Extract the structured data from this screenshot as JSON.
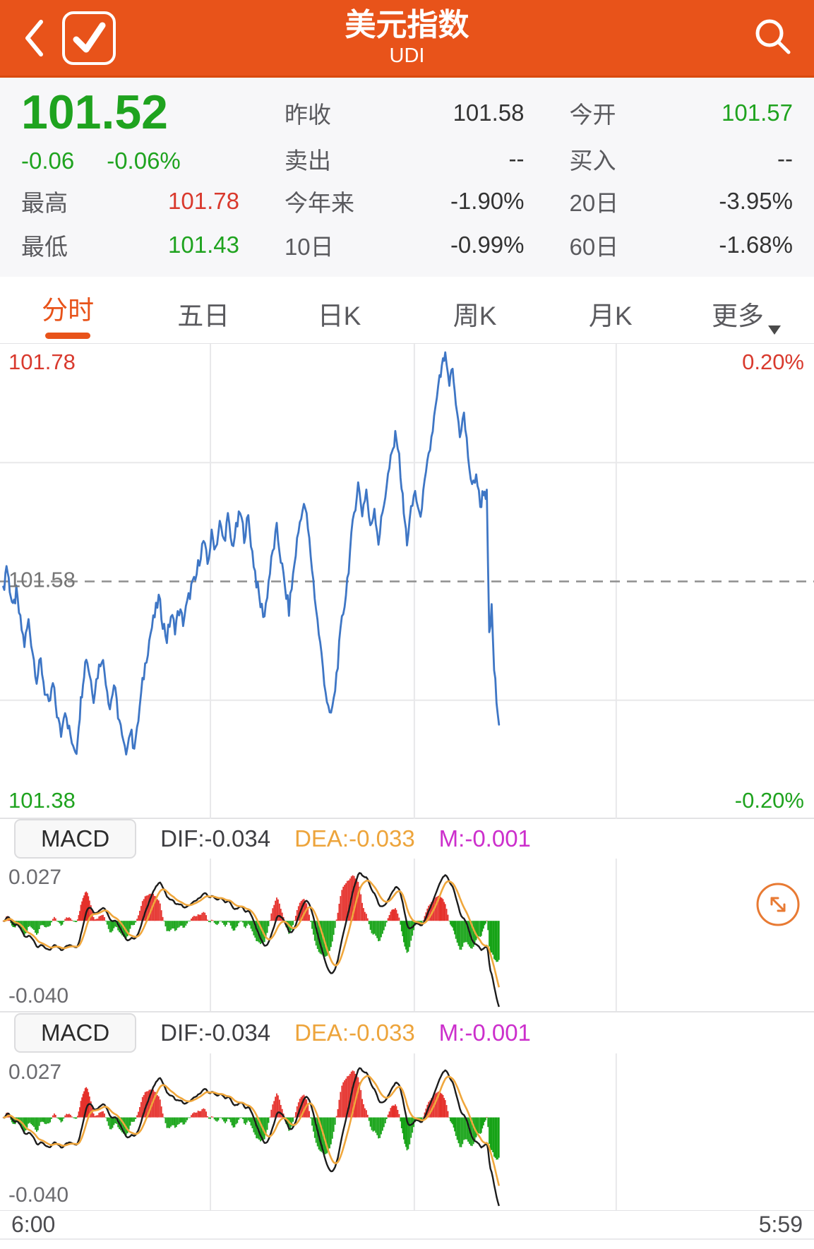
{
  "colors": {
    "accent_orange": "#E8531A",
    "up_red": "#D93A2E",
    "down_green": "#1FA31F",
    "line_blue": "#3E76C5",
    "dea_orange": "#F0A73C",
    "dif_black": "#1C1C1C",
    "m_magenta": "#CC2FCC",
    "bar_red": "#E5302B",
    "bar_green": "#16A316",
    "grid_gray": "#E8E8EA",
    "dashed_gray": "#8F8F8F"
  },
  "header": {
    "title": "美元指数",
    "subtitle": "UDI"
  },
  "quote": {
    "price": "101.52",
    "change": "-0.06",
    "change_pct": "-0.06%",
    "stats": [
      {
        "area": "zs",
        "label": "昨收",
        "value": "101.58",
        "cls": "dark"
      },
      {
        "area": "jk",
        "label": "今开",
        "value": "101.57",
        "cls": "green"
      },
      {
        "area": "mc",
        "label": "卖出",
        "value": "--",
        "cls": "dark"
      },
      {
        "area": "mr",
        "label": "买入",
        "value": "--",
        "cls": "dark"
      },
      {
        "area": "zg",
        "label": "最高",
        "value": "101.78",
        "cls": "red",
        "c1": true
      },
      {
        "area": "jnl",
        "label": "今年来",
        "value": "-1.90%",
        "cls": "dark"
      },
      {
        "area": "r20",
        "label": "20日",
        "value": "-3.95%",
        "cls": "dark"
      },
      {
        "area": "zd",
        "label": "最低",
        "value": "101.43",
        "cls": "green",
        "c1": true
      },
      {
        "area": "r10",
        "label": "10日",
        "value": "-0.99%",
        "cls": "dark"
      },
      {
        "area": "r60",
        "label": "60日",
        "value": "-1.68%",
        "cls": "dark"
      }
    ]
  },
  "tabs": {
    "active_index": 0,
    "items": [
      {
        "key": "minute",
        "label": "分时"
      },
      {
        "key": "five-day",
        "label": "五日"
      },
      {
        "key": "daily-k",
        "label": "日K"
      },
      {
        "key": "weekly-k",
        "label": "周K"
      },
      {
        "key": "monthly-k",
        "label": "月K"
      },
      {
        "key": "more",
        "label": "更多",
        "has_caret": true
      }
    ]
  },
  "macd": {
    "button_label": "MACD",
    "dif_label": "DIF:-0.034",
    "dea_label": "DEA:-0.033",
    "m_label": "M:-0.001",
    "top_label": "0.027",
    "bottom_label": "-0.040"
  },
  "time_axis": {
    "left": "6:00",
    "right": "5:59"
  },
  "chart_data": [
    {
      "type": "line",
      "name": "intraday-minute-line",
      "title": "美元指数 分时",
      "prev_close": 101.58,
      "ylim": [
        101.38,
        101.78
      ],
      "y_labels": {
        "top": "101.78",
        "mid": "101.58",
        "bottom": "101.38",
        "right_top": "0.20%",
        "right_bottom": "-0.20%"
      },
      "x_range": {
        "start": "6:00",
        "end": "5:59"
      },
      "grid": {
        "v_fractions": [
          0.2585,
          0.509,
          0.757
        ],
        "h_fractions": [
          0.25,
          0.75
        ]
      },
      "points": [
        [
          0.004,
          101.57
        ],
        [
          0.008,
          101.595
        ],
        [
          0.012,
          101.575
        ],
        [
          0.016,
          101.555
        ],
        [
          0.02,
          101.57
        ],
        [
          0.025,
          101.545
        ],
        [
          0.03,
          101.525
        ],
        [
          0.035,
          101.545
        ],
        [
          0.04,
          101.52
        ],
        [
          0.045,
          101.495
        ],
        [
          0.05,
          101.51
        ],
        [
          0.055,
          101.485
        ],
        [
          0.06,
          101.47
        ],
        [
          0.065,
          101.49
        ],
        [
          0.07,
          101.465
        ],
        [
          0.075,
          101.445
        ],
        [
          0.08,
          101.47
        ],
        [
          0.085,
          101.45
        ],
        [
          0.09,
          101.435
        ],
        [
          0.094,
          101.43
        ],
        [
          0.098,
          101.465
        ],
        [
          0.102,
          101.495
        ],
        [
          0.106,
          101.515
        ],
        [
          0.11,
          101.5
        ],
        [
          0.115,
          101.48
        ],
        [
          0.12,
          101.5
        ],
        [
          0.125,
          101.515
        ],
        [
          0.13,
          101.495
        ],
        [
          0.135,
          101.47
        ],
        [
          0.14,
          101.49
        ],
        [
          0.145,
          101.465
        ],
        [
          0.15,
          101.445
        ],
        [
          0.155,
          101.43
        ],
        [
          0.16,
          101.45
        ],
        [
          0.165,
          101.435
        ],
        [
          0.17,
          101.46
        ],
        [
          0.175,
          101.49
        ],
        [
          0.18,
          101.515
        ],
        [
          0.185,
          101.535
        ],
        [
          0.19,
          101.55
        ],
        [
          0.195,
          101.565
        ],
        [
          0.2,
          101.545
        ],
        [
          0.205,
          101.53
        ],
        [
          0.21,
          101.55
        ],
        [
          0.215,
          101.54
        ],
        [
          0.22,
          101.555
        ],
        [
          0.225,
          101.545
        ],
        [
          0.23,
          101.56
        ],
        [
          0.235,
          101.575
        ],
        [
          0.24,
          101.58
        ],
        [
          0.245,
          101.6
        ],
        [
          0.25,
          101.615
        ],
        [
          0.255,
          101.595
        ],
        [
          0.26,
          101.62
        ],
        [
          0.265,
          101.61
        ],
        [
          0.27,
          101.63
        ],
        [
          0.275,
          101.615
        ],
        [
          0.28,
          101.635
        ],
        [
          0.285,
          101.61
        ],
        [
          0.29,
          101.625
        ],
        [
          0.295,
          101.64
        ],
        [
          0.3,
          101.62
        ],
        [
          0.305,
          101.635
        ],
        [
          0.31,
          101.605
        ],
        [
          0.315,
          101.58
        ],
        [
          0.32,
          101.56
        ],
        [
          0.325,
          101.55
        ],
        [
          0.33,
          101.58
        ],
        [
          0.335,
          101.605
        ],
        [
          0.34,
          101.625
        ],
        [
          0.345,
          101.6
        ],
        [
          0.35,
          101.575
        ],
        [
          0.355,
          101.555
        ],
        [
          0.36,
          101.585
        ],
        [
          0.365,
          101.615
        ],
        [
          0.37,
          101.64
        ],
        [
          0.375,
          101.645
        ],
        [
          0.38,
          101.615
        ],
        [
          0.385,
          101.58
        ],
        [
          0.39,
          101.545
        ],
        [
          0.395,
          101.515
        ],
        [
          0.4,
          101.485
        ],
        [
          0.405,
          101.46
        ],
        [
          0.41,
          101.475
        ],
        [
          0.415,
          101.51
        ],
        [
          0.42,
          101.545
        ],
        [
          0.425,
          101.57
        ],
        [
          0.43,
          101.605
        ],
        [
          0.435,
          101.64
        ],
        [
          0.44,
          101.665
        ],
        [
          0.445,
          101.64
        ],
        [
          0.45,
          101.66
        ],
        [
          0.455,
          101.625
        ],
        [
          0.46,
          101.645
        ],
        [
          0.465,
          101.615
        ],
        [
          0.47,
          101.64
        ],
        [
          0.475,
          101.665
        ],
        [
          0.48,
          101.685
        ],
        [
          0.487,
          101.71
        ],
        [
          0.492,
          101.675
        ],
        [
          0.496,
          101.64
        ],
        [
          0.5,
          101.615
        ],
        [
          0.505,
          101.64
        ],
        [
          0.51,
          101.66
        ],
        [
          0.515,
          101.635
        ],
        [
          0.52,
          101.655
        ],
        [
          0.525,
          101.68
        ],
        [
          0.53,
          101.705
        ],
        [
          0.535,
          101.73
        ],
        [
          0.54,
          101.755
        ],
        [
          0.547,
          101.78
        ],
        [
          0.552,
          101.75
        ],
        [
          0.556,
          101.765
        ],
        [
          0.56,
          101.735
        ],
        [
          0.565,
          101.71
        ],
        [
          0.57,
          101.725
        ],
        [
          0.575,
          101.69
        ],
        [
          0.58,
          101.66
        ],
        [
          0.585,
          101.675
        ],
        [
          0.59,
          101.645
        ],
        [
          0.594,
          101.66
        ],
        [
          0.598,
          101.655
        ],
        [
          0.601,
          101.53
        ],
        [
          0.604,
          101.555
        ],
        [
          0.607,
          101.505
        ],
        [
          0.61,
          101.475
        ],
        [
          0.613,
          101.455
        ]
      ]
    },
    {
      "type": "macd",
      "name": "macd-indicator",
      "instances": 2,
      "dif": -0.034,
      "dea": -0.033,
      "m": -0.001,
      "ylim": [
        -0.04,
        0.027
      ],
      "labels": {
        "top": "0.027",
        "bottom": "-0.040"
      },
      "derived_from": "intraday-minute-line points"
    }
  ]
}
